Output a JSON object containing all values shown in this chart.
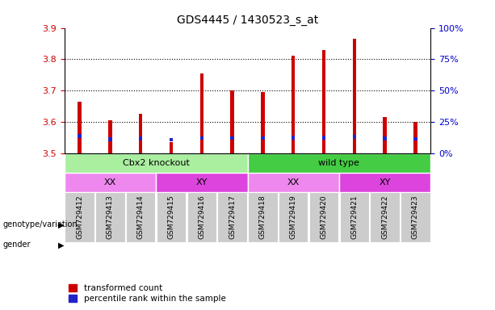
{
  "title": "GDS4445 / 1430523_s_at",
  "samples": [
    "GSM729412",
    "GSM729413",
    "GSM729414",
    "GSM729415",
    "GSM729416",
    "GSM729417",
    "GSM729418",
    "GSM729419",
    "GSM729420",
    "GSM729421",
    "GSM729422",
    "GSM729423"
  ],
  "transformed_count": [
    3.665,
    3.605,
    3.625,
    3.535,
    3.755,
    3.7,
    3.695,
    3.81,
    3.83,
    3.865,
    3.615,
    3.6
  ],
  "percentile_rank_val": [
    3.555,
    3.545,
    3.547,
    3.543,
    3.548,
    3.548,
    3.548,
    3.55,
    3.55,
    3.552,
    3.547,
    3.546
  ],
  "bar_bottom": 3.5,
  "ylim": [
    3.5,
    3.9
  ],
  "yticks": [
    3.5,
    3.6,
    3.7,
    3.8,
    3.9
  ],
  "right_yticks": [
    0,
    25,
    50,
    75,
    100
  ],
  "bar_color": "#cc0000",
  "percentile_color": "#2222cc",
  "bar_width": 0.12,
  "genotype_groups": [
    {
      "label": "Cbx2 knockout",
      "start": 0,
      "end": 6,
      "color": "#aaeea0"
    },
    {
      "label": "wild type",
      "start": 6,
      "end": 12,
      "color": "#44cc44"
    }
  ],
  "gender_groups": [
    {
      "label": "XX",
      "start": 0,
      "end": 3,
      "color": "#ee88ee"
    },
    {
      "label": "XY",
      "start": 3,
      "end": 6,
      "color": "#dd44dd"
    },
    {
      "label": "XX",
      "start": 6,
      "end": 9,
      "color": "#ee88ee"
    },
    {
      "label": "XY",
      "start": 9,
      "end": 12,
      "color": "#dd44dd"
    }
  ],
  "legend_red_label": "transformed count",
  "legend_blue_label": "percentile rank within the sample",
  "left_tick_color": "#cc0000",
  "right_tick_color": "#0000cc",
  "grid_color": "black",
  "tick_bg_color": "#cccccc",
  "bg_color": "#ffffff"
}
